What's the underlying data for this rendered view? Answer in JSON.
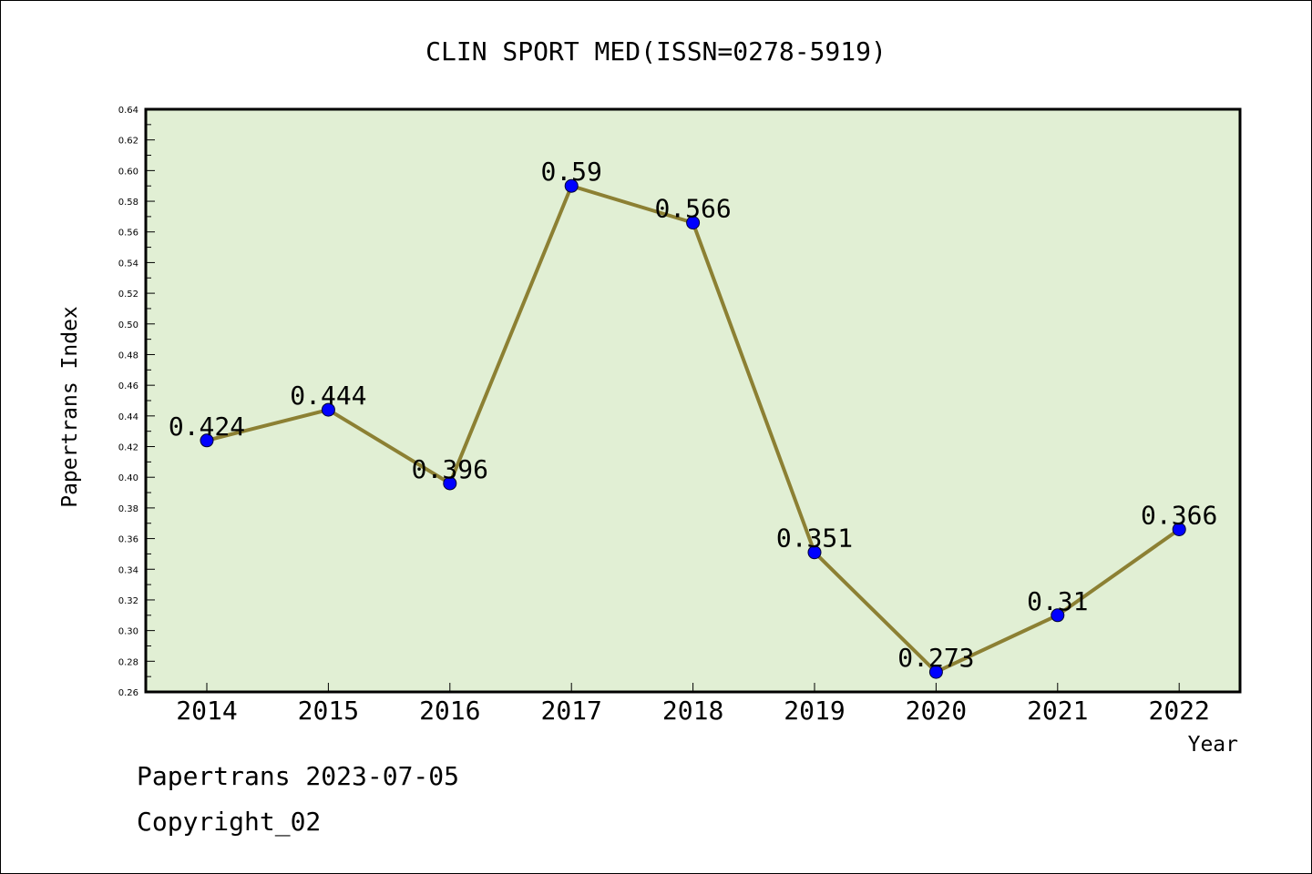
{
  "chart_data": {
    "type": "line",
    "title": "CLIN SPORT MED(ISSN=0278-5919)",
    "xlabel": "Year",
    "ylabel": "Papertrans Index",
    "categories": [
      "2014",
      "2015",
      "2016",
      "2017",
      "2018",
      "2019",
      "2020",
      "2021",
      "2022"
    ],
    "values": [
      0.424,
      0.444,
      0.396,
      0.59,
      0.566,
      0.351,
      0.273,
      0.31,
      0.366
    ],
    "data_labels": [
      "0.424",
      "0.444",
      "0.396",
      "0.59",
      "0.566",
      "0.351",
      "0.273",
      "0.31",
      "0.366"
    ],
    "ylim": [
      0.26,
      0.64
    ],
    "yticks": [
      "0.26",
      "0.28",
      "0.30",
      "0.32",
      "0.34",
      "0.36",
      "0.38",
      "0.40",
      "0.42",
      "0.44",
      "0.46",
      "0.48",
      "0.50",
      "0.52",
      "0.54",
      "0.56",
      "0.58",
      "0.60",
      "0.62",
      "0.64"
    ],
    "grid": false,
    "colors": {
      "plot_background": "#e1efd4",
      "line": "#8c8033",
      "marker": "#0000ff"
    }
  },
  "footer": {
    "line1": "Papertrans 2023-07-05",
    "line2": "Copyright_02"
  }
}
